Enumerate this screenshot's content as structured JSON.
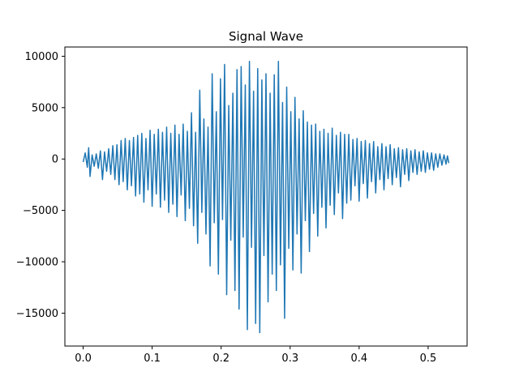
{
  "chart_data": {
    "type": "line",
    "title": "Signal Wave",
    "xlabel": "",
    "ylabel": "",
    "xlim": [
      -0.0265,
      0.5565
    ],
    "ylim": [
      -18200,
      10900
    ],
    "grid": false,
    "legend": "none",
    "series_color": "#1f77b4",
    "x_ticks": [
      {
        "value": 0.0,
        "label": "0.0"
      },
      {
        "value": 0.1,
        "label": "0.1"
      },
      {
        "value": 0.2,
        "label": "0.2"
      },
      {
        "value": 0.3,
        "label": "0.3"
      },
      {
        "value": 0.4,
        "label": "0.4"
      },
      {
        "value": 0.5,
        "label": "0.5"
      }
    ],
    "y_ticks": [
      {
        "value": 10000,
        "label": "10000"
      },
      {
        "value": 5000,
        "label": "5000"
      },
      {
        "value": 0,
        "label": "0"
      },
      {
        "value": -5000,
        "label": "−5000"
      },
      {
        "value": -10000,
        "label": "−10000"
      },
      {
        "value": -15000,
        "label": "−15000"
      }
    ],
    "series": [
      {
        "x_start": 0.0,
        "x_end": 0.53,
        "points": [
          [
            0.0,
            -300
          ],
          [
            0.003,
            600
          ],
          [
            0.006,
            -800
          ],
          [
            0.008,
            1100
          ],
          [
            0.01,
            -1700
          ],
          [
            0.013,
            400
          ],
          [
            0.016,
            -700
          ],
          [
            0.019,
            500
          ],
          [
            0.022,
            -900
          ],
          [
            0.025,
            800
          ],
          [
            0.028,
            -2000
          ],
          [
            0.031,
            700
          ],
          [
            0.034,
            -1200
          ],
          [
            0.037,
            1000
          ],
          [
            0.04,
            -1500
          ],
          [
            0.043,
            1300
          ],
          [
            0.046,
            -2000
          ],
          [
            0.049,
            1400
          ],
          [
            0.052,
            -2500
          ],
          [
            0.055,
            1800
          ],
          [
            0.058,
            -2200
          ],
          [
            0.061,
            2000
          ],
          [
            0.064,
            -3000
          ],
          [
            0.067,
            1800
          ],
          [
            0.07,
            -2600
          ],
          [
            0.073,
            2100
          ],
          [
            0.076,
            -3600
          ],
          [
            0.079,
            2300
          ],
          [
            0.082,
            -3400
          ],
          [
            0.085,
            2500
          ],
          [
            0.088,
            -4200
          ],
          [
            0.091,
            2000
          ],
          [
            0.094,
            -3000
          ],
          [
            0.097,
            2800
          ],
          [
            0.1,
            -4600
          ],
          [
            0.103,
            2400
          ],
          [
            0.106,
            -3400
          ],
          [
            0.109,
            2900
          ],
          [
            0.112,
            -4700
          ],
          [
            0.115,
            2600
          ],
          [
            0.118,
            -4000
          ],
          [
            0.121,
            3100
          ],
          [
            0.124,
            -5200
          ],
          [
            0.127,
            2500
          ],
          [
            0.13,
            -4400
          ],
          [
            0.133,
            3300
          ],
          [
            0.136,
            -5600
          ],
          [
            0.139,
            2400
          ],
          [
            0.142,
            -3500
          ],
          [
            0.145,
            3400
          ],
          [
            0.148,
            -6000
          ],
          [
            0.151,
            2700
          ],
          [
            0.154,
            -4800
          ],
          [
            0.157,
            4500
          ],
          [
            0.16,
            -6500
          ],
          [
            0.163,
            2600
          ],
          [
            0.166,
            -8200
          ],
          [
            0.169,
            6700
          ],
          [
            0.172,
            -5200
          ],
          [
            0.175,
            3900
          ],
          [
            0.178,
            -7300
          ],
          [
            0.181,
            3100
          ],
          [
            0.184,
            -10400
          ],
          [
            0.187,
            8300
          ],
          [
            0.19,
            -6200
          ],
          [
            0.193,
            4600
          ],
          [
            0.196,
            -11200
          ],
          [
            0.199,
            7800
          ],
          [
            0.202,
            -5900
          ],
          [
            0.205,
            9200
          ],
          [
            0.208,
            -13200
          ],
          [
            0.211,
            5200
          ],
          [
            0.214,
            -7900
          ],
          [
            0.217,
            6400
          ],
          [
            0.22,
            -12800
          ],
          [
            0.223,
            8700
          ],
          [
            0.226,
            -14600
          ],
          [
            0.229,
            9000
          ],
          [
            0.232,
            -7600
          ],
          [
            0.235,
            7200
          ],
          [
            0.238,
            -16600
          ],
          [
            0.241,
            9500
          ],
          [
            0.244,
            -8600
          ],
          [
            0.247,
            6600
          ],
          [
            0.25,
            -16000
          ],
          [
            0.253,
            8800
          ],
          [
            0.256,
            -16900
          ],
          [
            0.259,
            7700
          ],
          [
            0.262,
            -9400
          ],
          [
            0.265,
            8300
          ],
          [
            0.268,
            -13900
          ],
          [
            0.271,
            6400
          ],
          [
            0.274,
            -11200
          ],
          [
            0.277,
            8200
          ],
          [
            0.28,
            -12800
          ],
          [
            0.283,
            9500
          ],
          [
            0.286,
            -10300
          ],
          [
            0.289,
            5500
          ],
          [
            0.292,
            -15500
          ],
          [
            0.295,
            7000
          ],
          [
            0.298,
            -8700
          ],
          [
            0.301,
            4600
          ],
          [
            0.304,
            -10800
          ],
          [
            0.307,
            6000
          ],
          [
            0.31,
            -7300
          ],
          [
            0.313,
            3900
          ],
          [
            0.316,
            -11100
          ],
          [
            0.319,
            4700
          ],
          [
            0.322,
            -6000
          ],
          [
            0.325,
            3600
          ],
          [
            0.328,
            -9000
          ],
          [
            0.331,
            3300
          ],
          [
            0.334,
            -5300
          ],
          [
            0.337,
            3400
          ],
          [
            0.34,
            -7500
          ],
          [
            0.343,
            2700
          ],
          [
            0.346,
            -4700
          ],
          [
            0.349,
            2900
          ],
          [
            0.352,
            -6700
          ],
          [
            0.355,
            2500
          ],
          [
            0.358,
            -4500
          ],
          [
            0.361,
            3000
          ],
          [
            0.364,
            -5400
          ],
          [
            0.367,
            2300
          ],
          [
            0.37,
            -3300
          ],
          [
            0.373,
            2600
          ],
          [
            0.376,
            -5800
          ],
          [
            0.379,
            2400
          ],
          [
            0.382,
            -4300
          ],
          [
            0.385,
            2400
          ],
          [
            0.388,
            -4000
          ],
          [
            0.391,
            1900
          ],
          [
            0.394,
            -2600
          ],
          [
            0.397,
            2000
          ],
          [
            0.4,
            -4100
          ],
          [
            0.403,
            1700
          ],
          [
            0.406,
            -2400
          ],
          [
            0.409,
            1800
          ],
          [
            0.412,
            -3800
          ],
          [
            0.415,
            1500
          ],
          [
            0.418,
            -2200
          ],
          [
            0.421,
            1700
          ],
          [
            0.424,
            -3300
          ],
          [
            0.427,
            1200
          ],
          [
            0.43,
            -2000
          ],
          [
            0.433,
            1500
          ],
          [
            0.436,
            -3000
          ],
          [
            0.439,
            1200
          ],
          [
            0.442,
            -1900
          ],
          [
            0.445,
            1400
          ],
          [
            0.448,
            -2500
          ],
          [
            0.451,
            1000
          ],
          [
            0.454,
            -1800
          ],
          [
            0.457,
            1100
          ],
          [
            0.46,
            -2700
          ],
          [
            0.463,
            900
          ],
          [
            0.466,
            -1500
          ],
          [
            0.469,
            1000
          ],
          [
            0.472,
            -2100
          ],
          [
            0.475,
            800
          ],
          [
            0.478,
            -1300
          ],
          [
            0.481,
            900
          ],
          [
            0.484,
            -1500
          ],
          [
            0.487,
            700
          ],
          [
            0.49,
            -1200
          ],
          [
            0.493,
            800
          ],
          [
            0.496,
            -1300
          ],
          [
            0.499,
            600
          ],
          [
            0.502,
            -1000
          ],
          [
            0.505,
            600
          ],
          [
            0.508,
            -1100
          ],
          [
            0.511,
            500
          ],
          [
            0.514,
            -800
          ],
          [
            0.517,
            500
          ],
          [
            0.52,
            -600
          ],
          [
            0.523,
            400
          ],
          [
            0.526,
            -500
          ],
          [
            0.528,
            300
          ],
          [
            0.53,
            -400
          ]
        ]
      }
    ]
  }
}
